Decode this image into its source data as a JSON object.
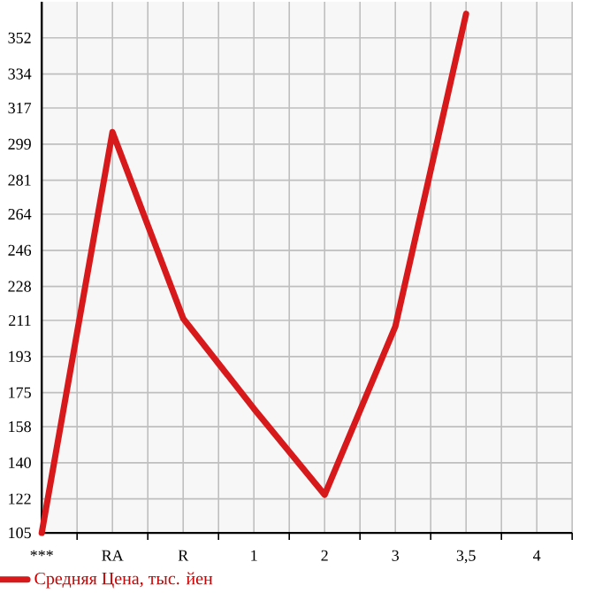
{
  "chart_data": {
    "type": "line",
    "categories": [
      "***",
      "RA",
      "R",
      "1",
      "2",
      "3",
      "3,5",
      "4"
    ],
    "series": [
      {
        "name": "Средняя Цена, тыс. йен",
        "color": "#d7191c",
        "values": [
          105,
          305,
          212,
          167,
          124,
          208,
          364,
          null
        ]
      }
    ],
    "ylim": [
      105,
      370
    ],
    "yticks": [
      105,
      122,
      140,
      158,
      175,
      193,
      211,
      228,
      246,
      264,
      281,
      299,
      317,
      334,
      352
    ],
    "grid": true,
    "legend": "bottom"
  }
}
